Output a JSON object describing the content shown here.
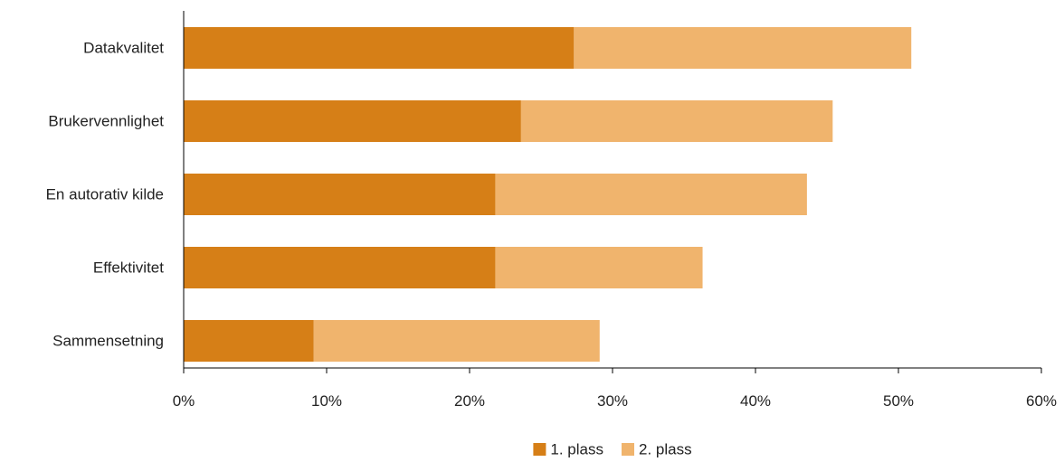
{
  "chart_data": {
    "type": "bar",
    "orientation": "horizontal",
    "stacked": true,
    "categories": [
      "Datakvalitet",
      "Brukervennlighet",
      "En autorativ kilde",
      "Effektivitet",
      "Sammensetning"
    ],
    "series": [
      {
        "name": "1. plass",
        "color": "#d67f17",
        "values": [
          27.3,
          23.6,
          21.8,
          21.8,
          9.1
        ]
      },
      {
        "name": "2. plass",
        "color": "#f0b46d",
        "values": [
          23.6,
          21.8,
          21.8,
          14.5,
          20.0
        ]
      }
    ],
    "xlim": [
      0,
      60
    ],
    "xticks": [
      0,
      10,
      20,
      30,
      40,
      50,
      60
    ],
    "xtick_labels": [
      "0%",
      "10%",
      "20%",
      "30%",
      "40%",
      "50%",
      "60%"
    ],
    "title": "",
    "xlabel": "",
    "ylabel": "",
    "grid": false,
    "legend_position": "bottom"
  }
}
